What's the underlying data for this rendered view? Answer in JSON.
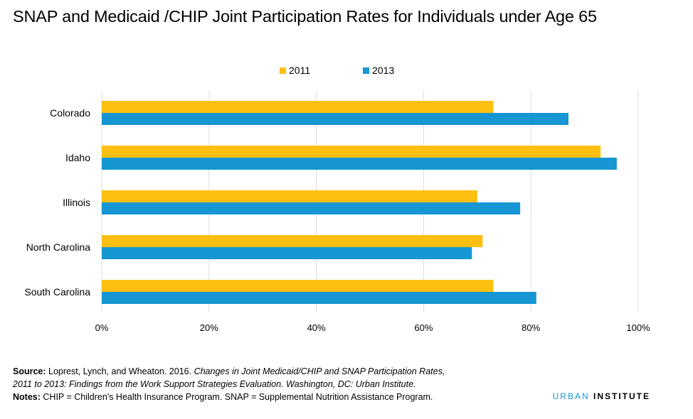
{
  "chart_data": {
    "type": "bar",
    "orientation": "horizontal",
    "title": "SNAP and Medicaid /CHIP Joint Participation Rates for Individuals under Age 65",
    "categories": [
      "Colorado",
      "Idaho",
      "Illinois",
      "North Carolina",
      "South Carolina"
    ],
    "series": [
      {
        "name": "2011",
        "color": "#fdbf11",
        "values": [
          73,
          93,
          70,
          71,
          73
        ]
      },
      {
        "name": "2013",
        "color": "#1696d2",
        "values": [
          87,
          96,
          78,
          69,
          81
        ]
      }
    ],
    "xlim": [
      0,
      100
    ],
    "x_ticks": [
      "0%",
      "20%",
      "40%",
      "60%",
      "80%",
      "100%"
    ],
    "x_tick_values": [
      0,
      20,
      40,
      60,
      80,
      100
    ],
    "grid": "vertical",
    "legend_position": "top-center"
  },
  "footer": {
    "source_label": "Source:",
    "source_text": "Loprest, Lynch, and Wheaton. 2016.",
    "source_title_line1": "Changes in Joint Medicaid/CHIP and SNAP Participation Rates,",
    "source_title_line2": "2011 to 2013: Findings from the Work Support Strategies Evaluation. Washington, DC: Urban Institute.",
    "notes_label": "Notes:",
    "notes_text": "CHIP = Children's Health Insurance Program. SNAP = Supplemental Nutrition Assistance Program."
  },
  "brand": {
    "part1": "URBAN",
    "part2": "INSTITUTE"
  },
  "colors": {
    "gold": "#fdbf11",
    "blue": "#1696d2",
    "grid": "#dddddd"
  }
}
